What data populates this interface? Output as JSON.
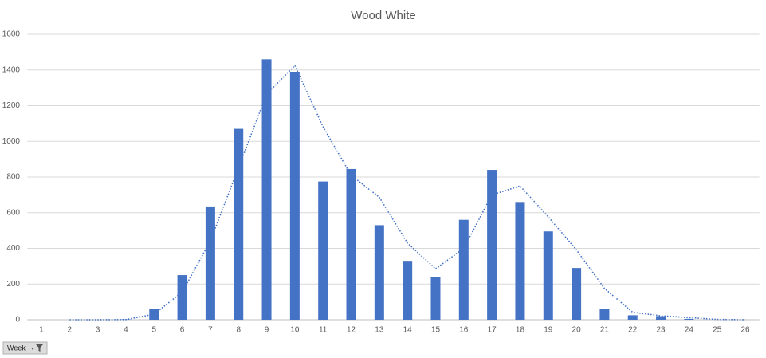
{
  "chart_data": {
    "type": "bar",
    "title": "Wood White",
    "categories": [
      "1",
      "2",
      "3",
      "4",
      "5",
      "6",
      "7",
      "8",
      "9",
      "10",
      "11",
      "12",
      "13",
      "14",
      "15",
      "16",
      "17",
      "18",
      "19",
      "20",
      "21",
      "22",
      "23",
      "24",
      "25",
      "26"
    ],
    "values": [
      0,
      0,
      0,
      2,
      60,
      250,
      635,
      1070,
      1460,
      1390,
      775,
      845,
      530,
      330,
      240,
      560,
      840,
      660,
      495,
      290,
      60,
      25,
      20,
      5,
      0,
      0
    ],
    "color": "#4472c4",
    "trendline": {
      "color": "#4472c4",
      "values": [
        null,
        0,
        0,
        1,
        31,
        155,
        442,
        852,
        1265,
        1425,
        1082,
        810,
        687,
        430,
        285,
        400,
        700,
        750,
        577,
        392,
        175,
        42,
        22,
        12,
        2,
        0
      ]
    },
    "ylim": [
      0,
      1600
    ],
    "yticks": [
      0,
      200,
      400,
      600,
      800,
      1000,
      1200,
      1400,
      1600
    ],
    "grid": true,
    "field_button": "Week"
  }
}
